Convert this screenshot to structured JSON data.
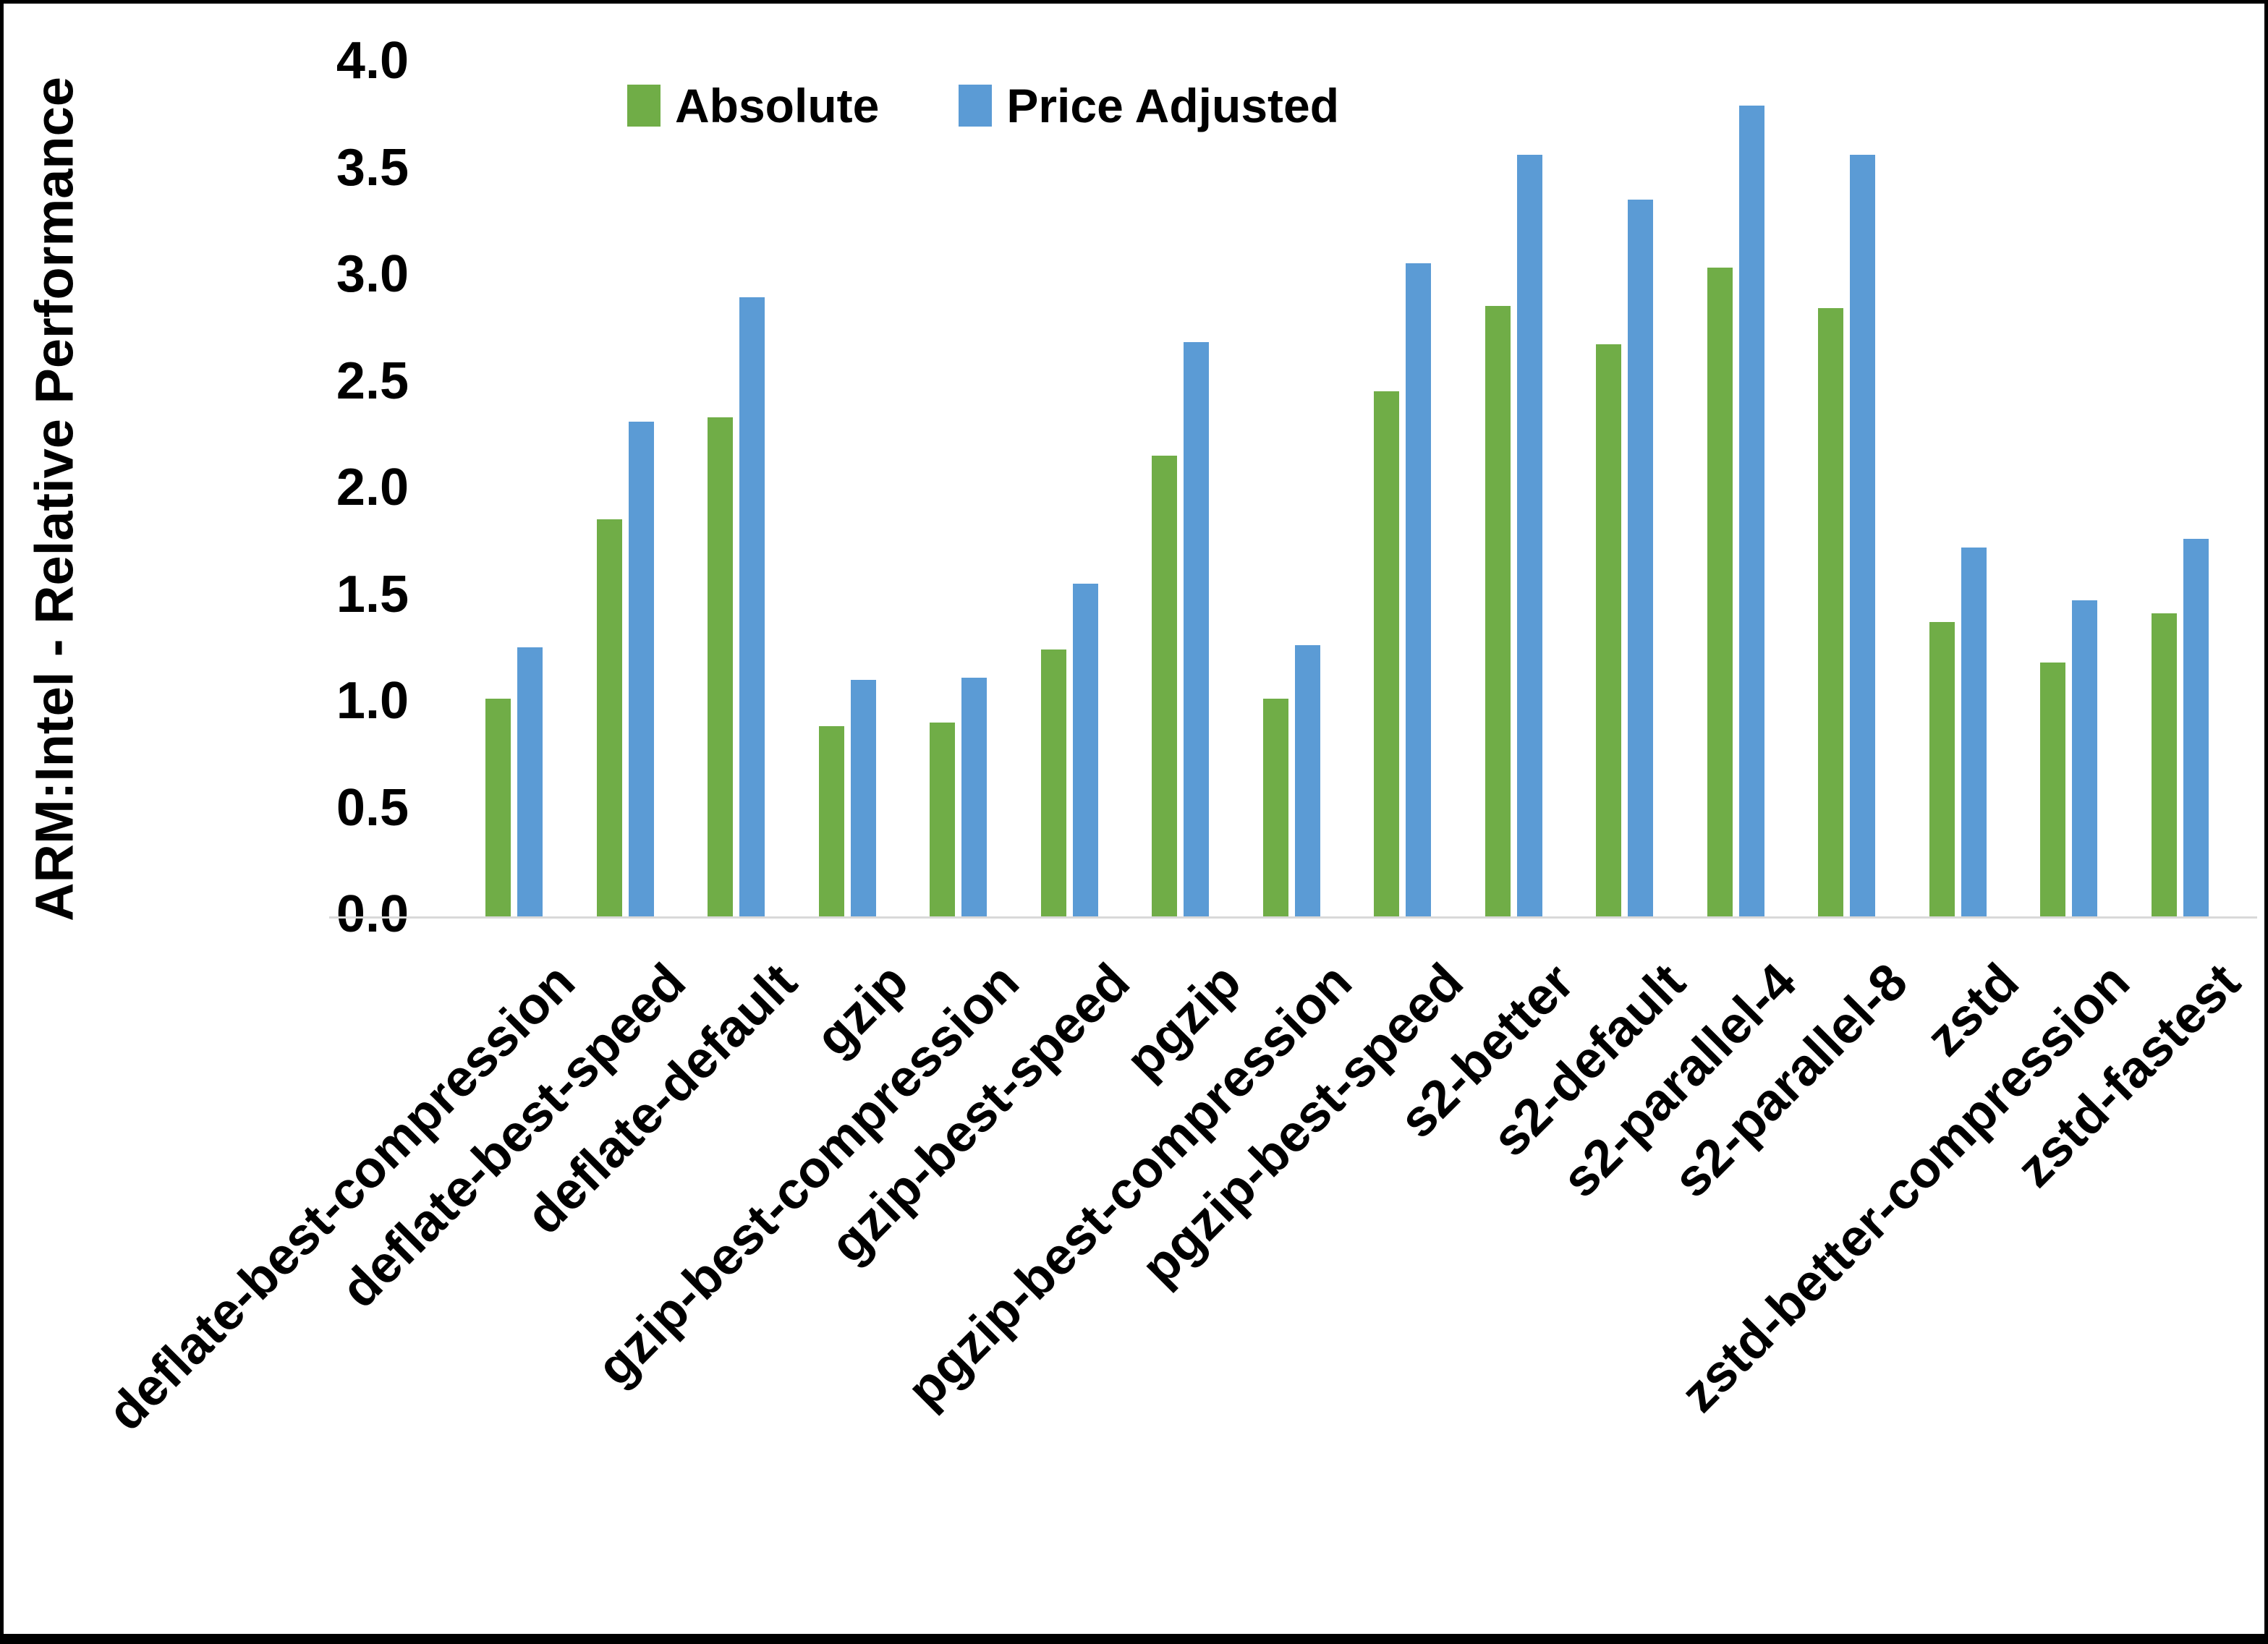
{
  "chart_data": {
    "type": "bar",
    "title": "",
    "xlabel": "",
    "ylabel": "ARM:Intel - Relative Performance",
    "ylim": [
      0.0,
      4.0
    ],
    "ytick_step": 0.5,
    "yticks": [
      "4.0",
      "3.5",
      "3.0",
      "2.5",
      "2.0",
      "1.5",
      "1.0",
      "0.5",
      "0.0"
    ],
    "grid": false,
    "legend_position": "top-center",
    "axis_line_color": "#d9d9d9",
    "background_color": "#ffffff",
    "border_color": "#000000",
    "categories": [
      "deflate-best-compression",
      "deflate-best-speed",
      "deflate-default",
      "gzip",
      "gzip-best-compression",
      "gzip-best-speed",
      "pgzip",
      "pgzip-best-compression",
      "pgzip-best-speed",
      "s2-better",
      "s2-default",
      "s2-parallel-4",
      "s2-parallel-8",
      "zstd",
      "zstd-better-compression",
      "zstd-fastest"
    ],
    "series": [
      {
        "name": "Absolute",
        "color": "#70AD47",
        "values": [
          1.02,
          1.86,
          2.34,
          0.89,
          0.91,
          1.25,
          2.16,
          1.02,
          2.46,
          2.86,
          2.68,
          3.04,
          2.85,
          1.38,
          1.19,
          1.42
        ]
      },
      {
        "name": "Price Adjusted",
        "color": "#5B9BD5",
        "values": [
          1.26,
          2.32,
          2.9,
          1.11,
          1.12,
          1.56,
          2.69,
          1.27,
          3.06,
          3.57,
          3.36,
          3.8,
          3.57,
          1.73,
          1.48,
          1.77
        ]
      }
    ]
  }
}
